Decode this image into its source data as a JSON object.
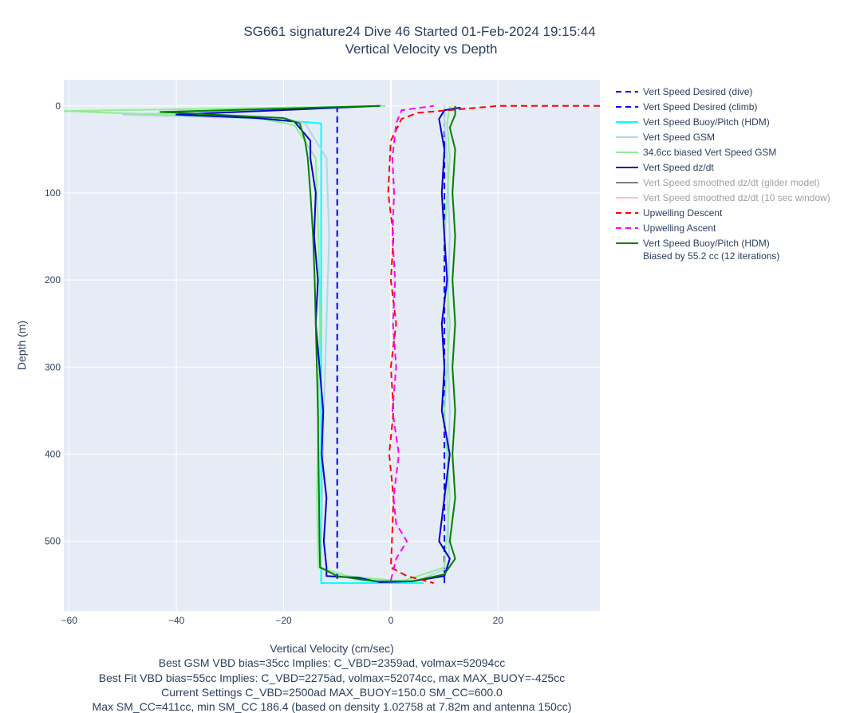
{
  "chart_data": {
    "type": "line",
    "title": "SG661 signature24 Dive 46 Started 01-Feb-2024 19:15:44",
    "subtitle": "Vertical Velocity vs Depth",
    "xlabel": "Vertical Velocity (cm/sec)",
    "ylabel": "Depth (m)",
    "xlim": [
      -61,
      39
    ],
    "ylim": [
      580,
      -30
    ],
    "y_reversed": true,
    "grid": true,
    "legend_position": "right",
    "x_ticks": [
      -60,
      -40,
      -20,
      0,
      20
    ],
    "x_tick_labels": [
      "−60",
      "−40",
      "−20",
      "0",
      "20"
    ],
    "y_ticks": [
      0,
      100,
      200,
      300,
      400,
      500
    ],
    "y_tick_labels": [
      "0",
      "100",
      "200",
      "300",
      "400",
      "500"
    ],
    "series": [
      {
        "name": "Vert Speed Desired (dive)",
        "color": "#0000ff",
        "dash": "dash",
        "dim": false,
        "points": [
          [
            -10,
            0
          ],
          [
            -10,
            548
          ]
        ]
      },
      {
        "name": "Vert Speed Desired (climb)",
        "color": "#0000ff",
        "dash": "dash",
        "dim": false,
        "points": [
          [
            10,
            548
          ],
          [
            10,
            0
          ]
        ]
      },
      {
        "name": "Vert Speed Buoy/Pitch (HDM)",
        "color": "#00ffff",
        "dash": "solid",
        "dim": false,
        "points": [
          [
            -13,
            548
          ],
          [
            6,
            548
          ],
          [
            -13,
            548
          ],
          [
            -13,
            20
          ],
          [
            -40,
            8
          ],
          [
            -2,
            0
          ]
        ]
      },
      {
        "name": "Vert Speed GSM",
        "color": "#add8e6",
        "dash": "solid",
        "dim": false,
        "points": [
          [
            -2,
            0
          ],
          [
            -50,
            10
          ],
          [
            -22,
            15
          ],
          [
            -16,
            20
          ],
          [
            -12,
            60
          ],
          [
            -11.5,
            150
          ],
          [
            -12,
            250
          ],
          [
            -12.5,
            350
          ],
          [
            -12.8,
            450
          ],
          [
            -13,
            530
          ],
          [
            -6,
            545
          ],
          [
            5,
            545
          ],
          [
            11,
            530
          ],
          [
            10.5,
            450
          ],
          [
            11,
            350
          ],
          [
            10.5,
            250
          ],
          [
            11,
            150
          ],
          [
            10.5,
            60
          ],
          [
            10,
            20
          ],
          [
            10,
            0
          ]
        ]
      },
      {
        "name": "34.6cc biased Vert Speed GSM",
        "color": "#90ee90",
        "dash": "solid",
        "dim": false,
        "points": [
          [
            -1,
            0
          ],
          [
            -61,
            6
          ],
          [
            -25,
            14
          ],
          [
            -18,
            22
          ],
          [
            -14,
            60
          ],
          [
            -13.5,
            150
          ],
          [
            -13.2,
            250
          ],
          [
            -13.5,
            350
          ],
          [
            -13.8,
            450
          ],
          [
            -13.5,
            530
          ],
          [
            -8,
            540
          ],
          [
            2,
            546
          ],
          [
            10,
            530
          ],
          [
            11,
            450
          ],
          [
            10,
            350
          ],
          [
            11,
            250
          ],
          [
            10,
            150
          ],
          [
            11,
            60
          ],
          [
            10.5,
            20
          ],
          [
            11,
            0
          ]
        ]
      },
      {
        "name": "Vert Speed dz/dt",
        "color": "#0000cd",
        "dash": "solid",
        "dim": false,
        "points": [
          [
            -2,
            0
          ],
          [
            -40,
            10
          ],
          [
            -25,
            14
          ],
          [
            -18,
            18
          ],
          [
            -15,
            40
          ],
          [
            -15,
            60
          ],
          [
            -14,
            100
          ],
          [
            -14.3,
            150
          ],
          [
            -13.6,
            200
          ],
          [
            -14,
            250
          ],
          [
            -13.3,
            300
          ],
          [
            -12.6,
            350
          ],
          [
            -12.9,
            400
          ],
          [
            -12,
            450
          ],
          [
            -12.5,
            500
          ],
          [
            -12,
            530
          ],
          [
            -12,
            540
          ],
          [
            -6,
            542
          ],
          [
            -2,
            547
          ],
          [
            4,
            546
          ],
          [
            10,
            540
          ],
          [
            11,
            520
          ],
          [
            9,
            500
          ],
          [
            10,
            450
          ],
          [
            11,
            400
          ],
          [
            9.5,
            350
          ],
          [
            10,
            300
          ],
          [
            9.5,
            250
          ],
          [
            10.5,
            200
          ],
          [
            10,
            150
          ],
          [
            9.5,
            100
          ],
          [
            10,
            50
          ],
          [
            9,
            15
          ],
          [
            10,
            5
          ],
          [
            13,
            2
          ]
        ]
      },
      {
        "name": "Vert Speed smoothed dz/dt (glider model)",
        "color": "#808080",
        "dash": "solid",
        "dim": true,
        "points": []
      },
      {
        "name": "Vert Speed smoothed dz/dt (10 sec window)",
        "color": "#ffc0cb",
        "dash": "solid",
        "dim": true,
        "points": []
      },
      {
        "name": "Upwelling Descent",
        "color": "#ff0000",
        "dash": "dash",
        "dim": false,
        "points": [
          [
            39,
            0
          ],
          [
            20,
            0
          ],
          [
            5,
            8
          ],
          [
            2,
            15
          ],
          [
            0,
            40
          ],
          [
            -0.5,
            100
          ],
          [
            0.5,
            150
          ],
          [
            0,
            200
          ],
          [
            1,
            250
          ],
          [
            0,
            300
          ],
          [
            0.5,
            350
          ],
          [
            -0.3,
            400
          ],
          [
            0.5,
            450
          ],
          [
            0.2,
            500
          ],
          [
            0,
            530
          ],
          [
            3,
            540
          ],
          [
            8,
            548
          ]
        ]
      },
      {
        "name": "Upwelling Ascent",
        "color": "#ff00ff",
        "dash": "dash",
        "dim": false,
        "points": [
          [
            0,
            545
          ],
          [
            1,
            520
          ],
          [
            3,
            500
          ],
          [
            1,
            480
          ],
          [
            0.5,
            450
          ],
          [
            1.5,
            400
          ],
          [
            0.3,
            350
          ],
          [
            1,
            300
          ],
          [
            0.4,
            250
          ],
          [
            0.8,
            200
          ],
          [
            0.3,
            150
          ],
          [
            0.6,
            100
          ],
          [
            0.3,
            60
          ],
          [
            1,
            20
          ],
          [
            2,
            5
          ],
          [
            8,
            0
          ]
        ]
      },
      {
        "name": "Vert Speed Buoy/Pitch (HDM)",
        "name_line2": "Biased by 55.2 cc (12 iterations)",
        "color": "#008000",
        "dash": "solid",
        "dim": false,
        "points": [
          [
            -2,
            0
          ],
          [
            -43,
            7
          ],
          [
            -20,
            14
          ],
          [
            -17,
            20
          ],
          [
            -16,
            40
          ],
          [
            -15.5,
            60
          ],
          [
            -15,
            100
          ],
          [
            -14.5,
            150
          ],
          [
            -14.2,
            200
          ],
          [
            -14,
            250
          ],
          [
            -13.8,
            300
          ],
          [
            -13.6,
            350
          ],
          [
            -13.5,
            400
          ],
          [
            -13.4,
            450
          ],
          [
            -13.3,
            500
          ],
          [
            -13.2,
            530
          ],
          [
            -10,
            540
          ],
          [
            -3,
            546
          ],
          [
            4,
            546
          ],
          [
            10,
            538
          ],
          [
            12,
            520
          ],
          [
            11,
            500
          ],
          [
            12,
            450
          ],
          [
            11.5,
            400
          ],
          [
            12,
            350
          ],
          [
            11.5,
            300
          ],
          [
            12,
            250
          ],
          [
            11.5,
            200
          ],
          [
            12,
            150
          ],
          [
            11.5,
            100
          ],
          [
            12,
            50
          ],
          [
            11,
            25
          ],
          [
            12,
            10
          ],
          [
            12,
            0
          ]
        ]
      }
    ],
    "notes": [
      "Best GSM VBD bias=35cc Implies: C_VBD=2359ad, volmax=52094cc",
      "Best Fit VBD bias=55cc Implies: C_VBD=2275ad, volmax=52074cc, max MAX_BUOY=-425cc",
      "Current Settings C_VBD=2500ad MAX_BUOY=150.0 SM_CC=600.0",
      "Max SM_CC=411cc, min SM_CC 186.4 (based on density 1.02758 at 7.82m and antenna 150cc)"
    ]
  }
}
